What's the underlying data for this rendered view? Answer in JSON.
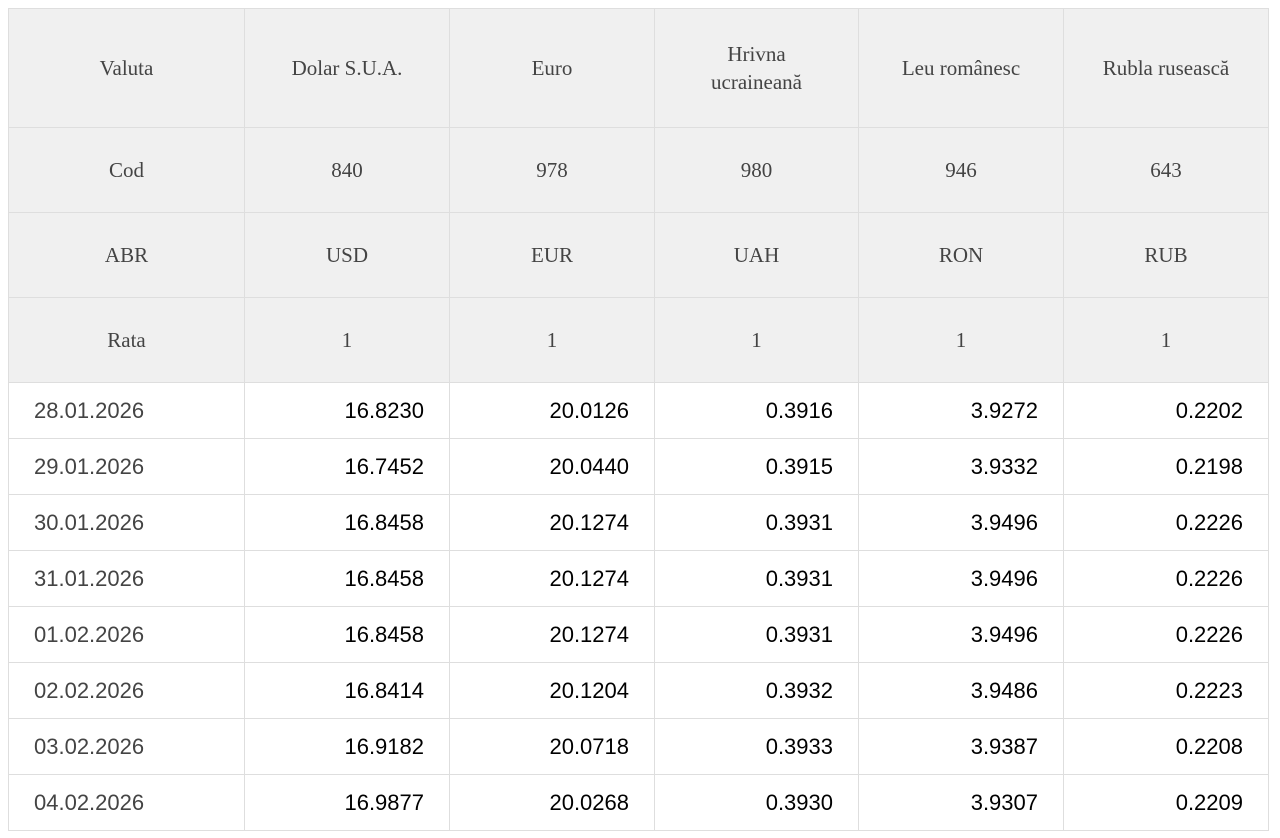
{
  "table": {
    "header_rows": [
      [
        "Valuta",
        "Dolar S.U.A.",
        "Euro",
        "Hrivna ucraineană",
        "Leu românesc",
        "Rubla rusească"
      ],
      [
        "Cod",
        "840",
        "978",
        "980",
        "946",
        "643"
      ],
      [
        "ABR",
        "USD",
        "EUR",
        "UAH",
        "RON",
        "RUB"
      ],
      [
        "Rata",
        "1",
        "1",
        "1",
        "1",
        "1"
      ]
    ],
    "rows": [
      [
        "28.01.2026",
        "16.8230",
        "20.0126",
        "0.3916",
        "3.9272",
        "0.2202"
      ],
      [
        "29.01.2026",
        "16.7452",
        "20.0440",
        "0.3915",
        "3.9332",
        "0.2198"
      ],
      [
        "30.01.2026",
        "16.8458",
        "20.1274",
        "0.3931",
        "3.9496",
        "0.2226"
      ],
      [
        "31.01.2026",
        "16.8458",
        "20.1274",
        "0.3931",
        "3.9496",
        "0.2226"
      ],
      [
        "01.02.2026",
        "16.8458",
        "20.1274",
        "0.3931",
        "3.9496",
        "0.2226"
      ],
      [
        "02.02.2026",
        "16.8414",
        "20.1204",
        "0.3932",
        "3.9486",
        "0.2223"
      ],
      [
        "03.02.2026",
        "16.9182",
        "20.0718",
        "0.3933",
        "3.9387",
        "0.2208"
      ],
      [
        "04.02.2026",
        "16.9877",
        "20.0268",
        "0.3930",
        "3.9307",
        "0.2209"
      ]
    ]
  }
}
